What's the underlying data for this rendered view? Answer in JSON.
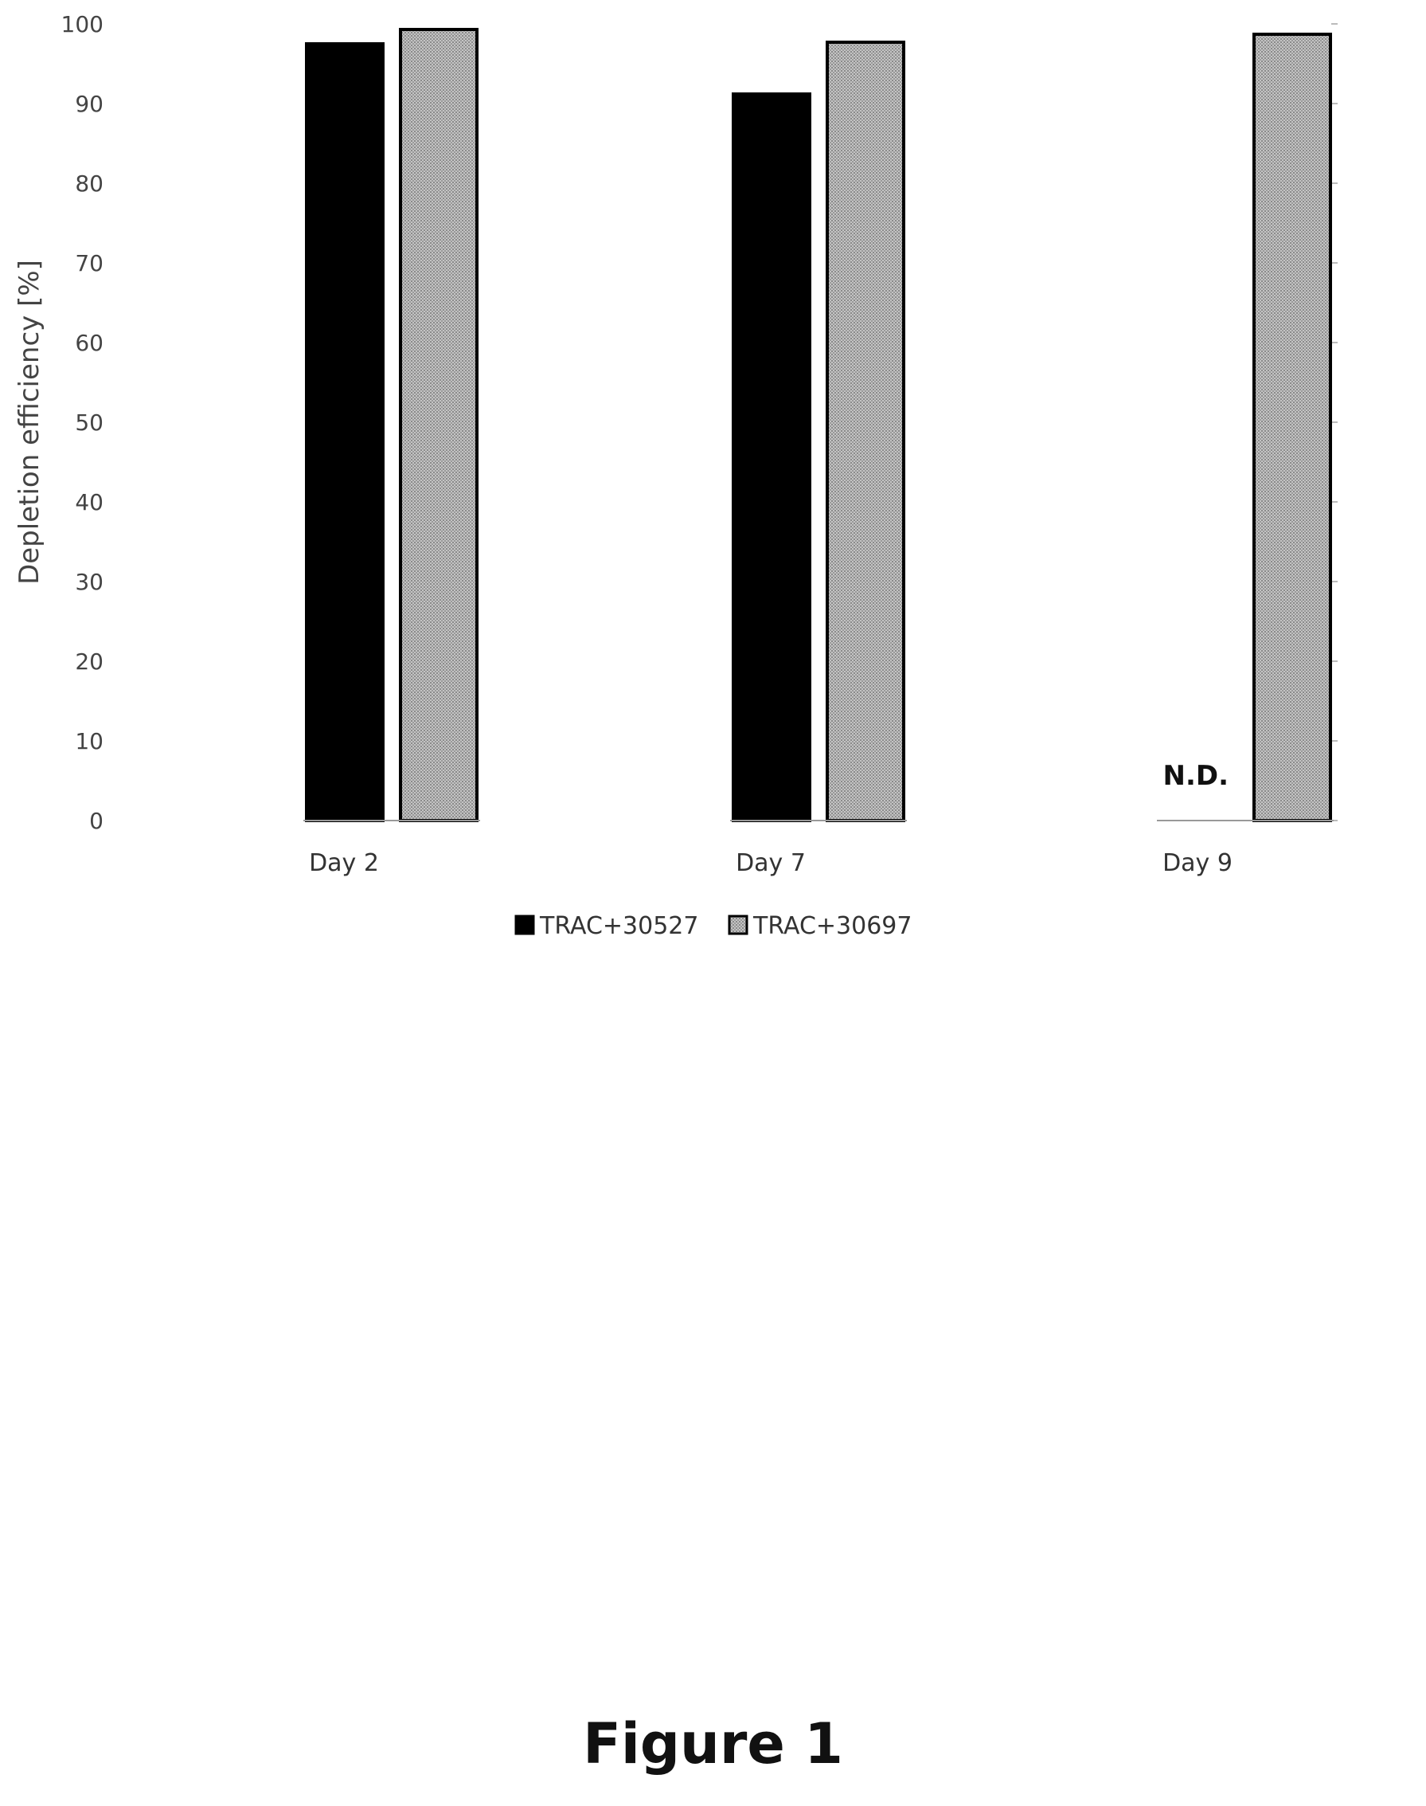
{
  "chart_data": {
    "type": "bar",
    "ylabel": "Depletion efficiency [%]",
    "ylim": [
      0,
      100
    ],
    "yticks": [
      0,
      10,
      20,
      30,
      40,
      50,
      60,
      70,
      80,
      90,
      100
    ],
    "categories": [
      "Day 2",
      "Day 7",
      "Day 9"
    ],
    "series": [
      {
        "name": "TRAC+30527",
        "values": [
          97.5,
          91.2,
          null
        ],
        "color": "#000000",
        "pattern": "solid"
      },
      {
        "name": "TRAC+30697",
        "values": [
          99.3,
          97.7,
          98.7
        ],
        "color": "#b0b0b0",
        "pattern": "dotted-gray"
      }
    ],
    "annotations": [
      {
        "category": "Day 9",
        "series": "TRAC+30527",
        "text": "N.D."
      }
    ],
    "legend_position": "bottom",
    "grid": false
  },
  "figure": {
    "caption": "Figure 1"
  }
}
